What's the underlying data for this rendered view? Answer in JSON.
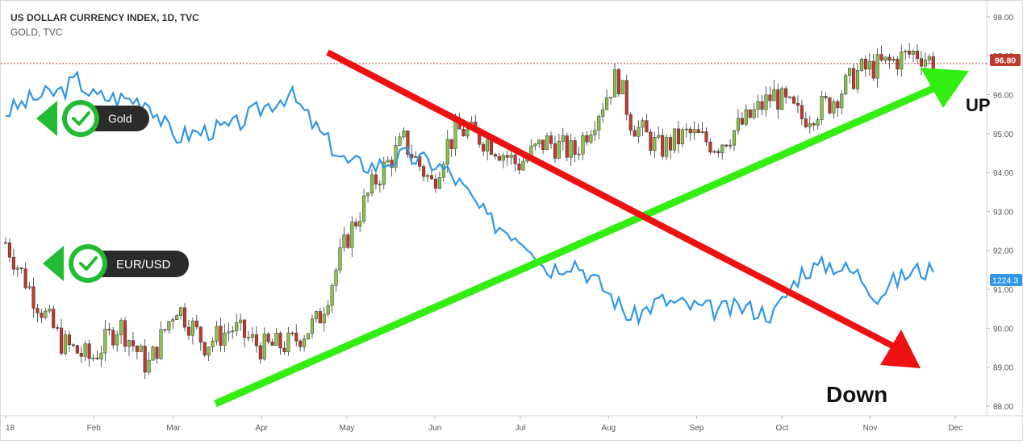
{
  "header": {
    "title": "US DOLLAR CURRENCY INDEX, 1D, TVC",
    "subtitle": "GOLD, TVC"
  },
  "badges": [
    {
      "label": "Gold",
      "icon": "check-icon",
      "color": "#22bb33"
    },
    {
      "label": "EUR/USD",
      "icon": "check-icon",
      "color": "#22bb33"
    }
  ],
  "annotations": {
    "up": "UP",
    "down": "Down"
  },
  "price_labels": {
    "dxy": "96.80",
    "gold": "1224.3"
  },
  "colors": {
    "up_candle": "#8bc34a",
    "down_candle": "#c0392b",
    "gold_line": "#2f96e8",
    "green_arrow": "#33ee11",
    "red_arrow": "#ee1111",
    "badge_green": "#22bb33",
    "badge_dark": "#2b2b2b",
    "dxy_tag": "#c0392b",
    "gold_tag": "#2f96e8"
  },
  "chart_data": {
    "type": "line",
    "title": "US DOLLAR CURRENCY INDEX, 1D, TVC",
    "x_ticks": [
      "18",
      "Feb",
      "Mar",
      "Apr",
      "May",
      "Jun",
      "Jul",
      "Aug",
      "Sep",
      "Oct",
      "Nov",
      "Dec"
    ],
    "x_tick_days": [
      0,
      31,
      59,
      90,
      120,
      151,
      181,
      212,
      243,
      273,
      304,
      334
    ],
    "y_ticks": [
      88.0,
      89.0,
      90.0,
      91.0,
      92.0,
      93.0,
      94.0,
      95.0,
      96.0,
      97.0,
      98.0
    ],
    "ylim": [
      87.75,
      98.35
    ],
    "last_price": 96.8,
    "series": [
      {
        "name": "US DOLLAR CURRENCY INDEX, 1D, TVC",
        "type": "candlestick",
        "x_day": [
          0,
          10,
          20,
          30,
          40,
          50,
          60,
          70,
          80,
          90,
          100,
          110,
          120,
          130,
          140,
          150,
          155,
          160,
          170,
          180,
          190,
          200,
          210,
          215,
          220,
          230,
          240,
          250,
          260,
          270,
          280,
          290,
          300,
          310,
          320,
          327
        ],
        "close": [
          92.2,
          90.8,
          89.6,
          89.2,
          90.1,
          89.0,
          90.6,
          89.6,
          90.0,
          89.5,
          89.6,
          90.2,
          92.3,
          93.8,
          94.8,
          93.7,
          94.7,
          95.1,
          94.8,
          94.2,
          94.8,
          94.5,
          95.8,
          96.5,
          95.3,
          94.6,
          95.0,
          94.7,
          95.3,
          96.0,
          95.4,
          95.8,
          96.6,
          96.8,
          97.1,
          96.8
        ]
      },
      {
        "name": "GOLD, TVC",
        "type": "line",
        "x_day": [
          0,
          10,
          20,
          25,
          31,
          40,
          50,
          59,
          70,
          80,
          90,
          100,
          110,
          120,
          130,
          140,
          150,
          155,
          160,
          170,
          180,
          185,
          190,
          200,
          212,
          220,
          230,
          243,
          250,
          260,
          270,
          280,
          290,
          300,
          307,
          310,
          320,
          327
        ],
        "values": [
          1335,
          1345,
          1350,
          1358,
          1346,
          1345,
          1343,
          1318,
          1322,
          1325,
          1338,
          1348,
          1322,
          1300,
          1298,
          1305,
          1300,
          1295,
          1285,
          1260,
          1250,
          1243,
          1226,
          1232,
          1210,
          1192,
          1205,
          1200,
          1198,
          1200,
          1195,
          1225,
          1230,
          1223,
          1207,
          1215,
          1226,
          1224.3
        ]
      }
    ]
  }
}
